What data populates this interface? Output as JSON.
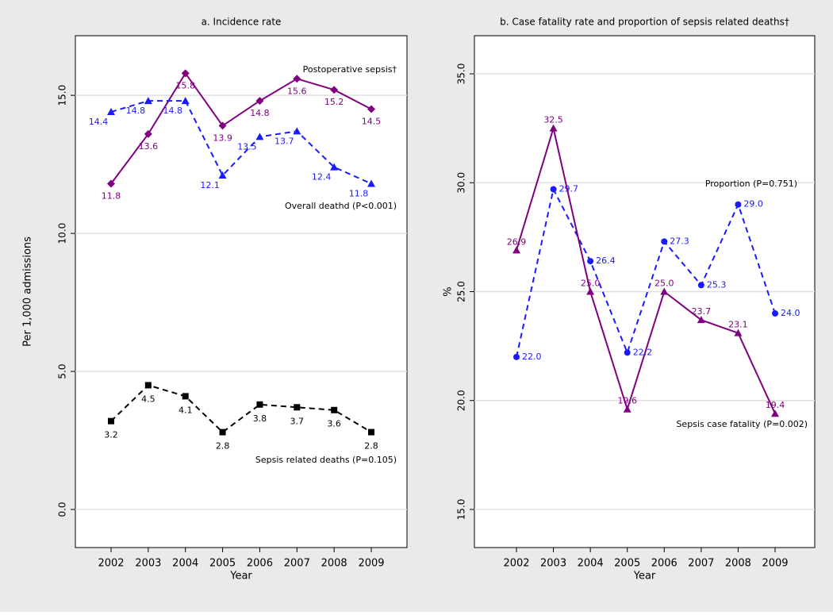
{
  "chart_data": [
    {
      "type": "line",
      "title": "a. Incidence rate",
      "x_label": "Year",
      "y_label": "Per 1,000 admissions",
      "categories": [
        "2002",
        "2003",
        "2004",
        "2005",
        "2006",
        "2007",
        "2008",
        "2009"
      ],
      "ylim": [
        -1.38,
        17.16
      ],
      "yticks": [
        {
          "value": 0,
          "label": "0.0"
        },
        {
          "value": 5,
          "label": "5.0"
        },
        {
          "value": 10,
          "label": "10.0"
        },
        {
          "value": 15,
          "label": "15.0"
        }
      ],
      "grid": true,
      "series": [
        {
          "name": "Postoperative sepsis†",
          "color": "#800080",
          "marker": "diamond",
          "dash": false,
          "values": [
            11.8,
            13.6,
            15.8,
            13.9,
            14.8,
            15.6,
            15.2,
            14.5
          ],
          "value_labels": [
            "11.8",
            "13.6",
            "15.8",
            "13.9",
            "14.8",
            "15.6",
            "15.2",
            "14.5"
          ]
        },
        {
          "name": "Overall deathd (P<0.001)",
          "color": "#1a1aff",
          "marker": "triangle",
          "dash": true,
          "values": [
            14.4,
            14.8,
            14.8,
            12.1,
            13.5,
            13.7,
            12.4,
            11.8
          ],
          "value_labels": [
            "14.4",
            "14.8",
            "14.8",
            "12.1",
            "13.5",
            "13.7",
            "12.4",
            "11.8"
          ]
        },
        {
          "name": "Sepsis related deaths (P=0.105)",
          "color": "#000000",
          "marker": "square",
          "dash": true,
          "values": [
            3.2,
            4.5,
            4.1,
            2.8,
            3.8,
            3.7,
            3.6,
            2.8
          ],
          "value_labels": [
            "3.2",
            "4.5",
            "4.1",
            "2.8",
            "3.8",
            "3.7",
            "3.6",
            "2.8"
          ]
        }
      ]
    },
    {
      "type": "line",
      "title": "b. Case fatality rate and proportion of sepsis related deaths†",
      "x_label": "Year",
      "y_label": "%",
      "categories": [
        "2002",
        "2003",
        "2004",
        "2005",
        "2006",
        "2007",
        "2008",
        "2009"
      ],
      "ylim": [
        13.25,
        36.75
      ],
      "yticks": [
        {
          "value": 15,
          "label": "15.0"
        },
        {
          "value": 20,
          "label": "20.0"
        },
        {
          "value": 25,
          "label": "25.0"
        },
        {
          "value": 30,
          "label": "30.0"
        },
        {
          "value": 35,
          "label": "35.0"
        }
      ],
      "grid": true,
      "series": [
        {
          "name": "Proportion (P=0.751)",
          "color": "#1a1aff",
          "marker": "circle",
          "dash": true,
          "values": [
            22.0,
            29.7,
            26.4,
            22.2,
            27.3,
            25.3,
            29.0,
            24.0
          ],
          "value_labels": [
            "22.0",
            "29.7",
            "26.4",
            "22.2",
            "27.3",
            "25.3",
            "29.0",
            "24.0"
          ]
        },
        {
          "name": "Sepsis case fatality (P=0.002)",
          "color": "#800080",
          "marker": "triangle",
          "dash": false,
          "values": [
            26.9,
            32.5,
            25.0,
            19.6,
            25.0,
            23.7,
            23.1,
            19.4
          ],
          "value_labels": [
            "26.9",
            "32.5",
            "25.0",
            "19.6",
            "25.0",
            "23.7",
            "23.1",
            "19.4"
          ]
        }
      ]
    }
  ]
}
